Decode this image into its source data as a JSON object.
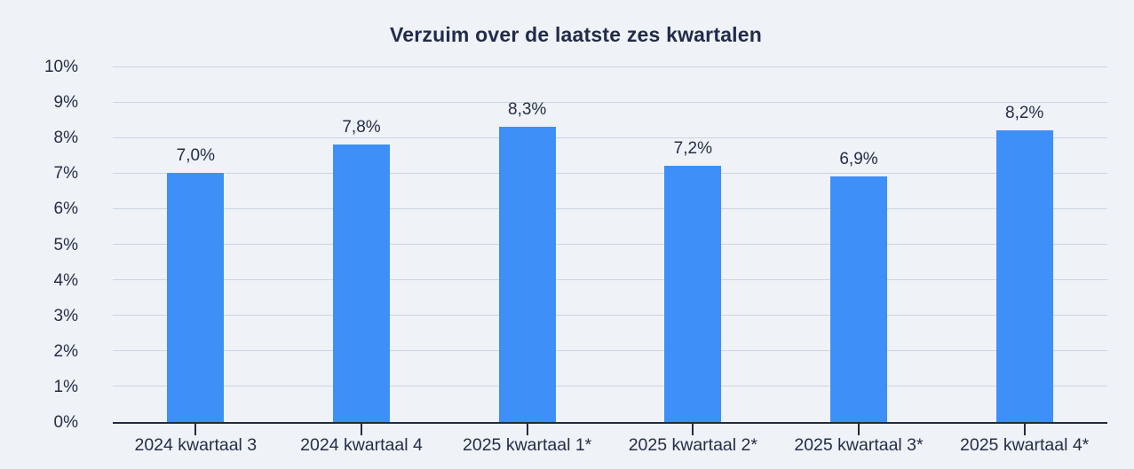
{
  "chart_data": {
    "type": "bar",
    "title": "Verzuim over de laatste zes kwartalen",
    "categories": [
      "2024 kwartaal 3",
      "2024 kwartaal 4",
      "2025 kwartaal 1*",
      "2025 kwartaal 2*",
      "2025 kwartaal 3*",
      "2025 kwartaal 4*"
    ],
    "values": [
      7.0,
      7.8,
      8.3,
      7.2,
      6.9,
      8.2
    ],
    "value_labels": [
      "7,0%",
      "7,8%",
      "8,3%",
      "7,2%",
      "6,9%",
      "8,2%"
    ],
    "xlabel": "",
    "ylabel": "",
    "ylim": [
      0,
      10
    ],
    "y_tick_step": 1,
    "y_tick_labels": [
      "0%",
      "1%",
      "2%",
      "3%",
      "4%",
      "5%",
      "6%",
      "7%",
      "8%",
      "9%",
      "10%"
    ],
    "grid": true,
    "legend_position": "none",
    "colors": {
      "bar": "#3e8ff8",
      "background": "#eff2f7",
      "gridline": "#ccd5e3",
      "axis": "#222b3f",
      "text": "#252e47",
      "title": "#222c49"
    }
  }
}
